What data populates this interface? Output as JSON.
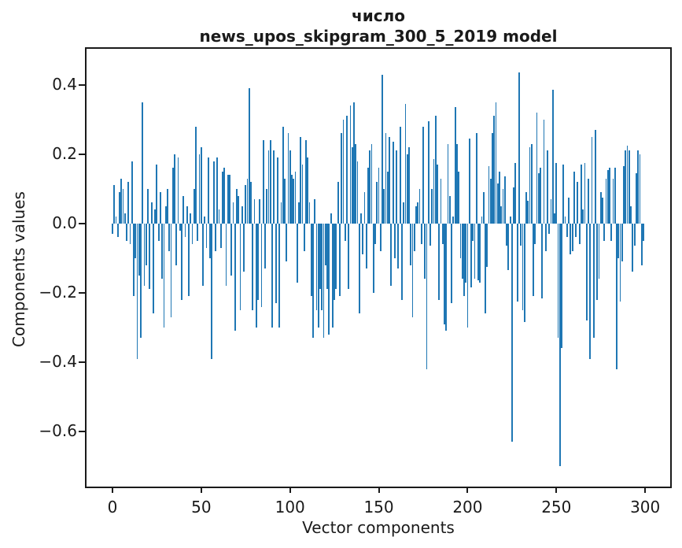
{
  "figure": {
    "title_line1": "число",
    "title_line2": "news_upos_skipgram_300_5_2019 model",
    "xlabel": "Vector components",
    "ylabel": "Components values"
  },
  "chart_data": {
    "type": "bar",
    "title": "число — news_upos_skipgram_300_5_2019 model",
    "xlabel": "Vector components",
    "ylabel": "Components values",
    "legend": "none",
    "grid": false,
    "bar_color": "#1f77b4",
    "axis_color": "#1a1a1a",
    "n_components": 300,
    "bar_width_data_units": 0.8,
    "xlim": [
      -14.6,
      314.1
    ],
    "ylim": [
      -0.759,
      0.504
    ],
    "xticks": [
      0,
      50,
      100,
      150,
      200,
      250,
      300
    ],
    "xtick_labels": [
      "0",
      "50",
      "100",
      "150",
      "200",
      "250",
      "300"
    ],
    "yticks": [
      0.4,
      0.2,
      0.0,
      -0.2,
      -0.4,
      -0.6
    ],
    "ytick_labels": [
      "0.4",
      "0.2",
      "0.0",
      "−0.2",
      "−0.4",
      "−0.6"
    ],
    "values": [
      -0.03,
      0.11,
      0.02,
      -0.04,
      0.09,
      0.13,
      0.1,
      0.03,
      -0.05,
      0.12,
      -0.06,
      0.18,
      -0.21,
      -0.1,
      -0.39,
      -0.15,
      -0.33,
      0.35,
      -0.18,
      -0.12,
      0.1,
      -0.19,
      0.06,
      -0.26,
      0.04,
      0.17,
      -0.05,
      0.09,
      -0.16,
      -0.3,
      0.05,
      0.1,
      -0.08,
      -0.27,
      0.16,
      0.2,
      -0.12,
      0.19,
      -0.02,
      -0.22,
      0.08,
      -0.04,
      0.05,
      -0.21,
      0.03,
      -0.06,
      0.1,
      0.28,
      -0.05,
      0.2,
      0.22,
      -0.18,
      0.02,
      -0.07,
      0.19,
      -0.1,
      -0.39,
      0.18,
      -0.08,
      0.19,
      0.04,
      -0.07,
      0.15,
      0.16,
      -0.18,
      0.14,
      0.14,
      -0.15,
      0.06,
      -0.31,
      0.1,
      0.08,
      -0.25,
      0.05,
      -0.14,
      0.11,
      0.13,
      0.39,
      0.12,
      -0.25,
      0.07,
      -0.3,
      -0.22,
      0.07,
      -0.24,
      0.24,
      -0.13,
      0.1,
      0.21,
      0.24,
      -0.3,
      0.21,
      -0.23,
      0.19,
      -0.3,
      0.06,
      0.28,
      0.13,
      -0.11,
      0.26,
      0.21,
      0.14,
      0.13,
      0.15,
      -0.17,
      0.06,
      0.25,
      0.17,
      -0.08,
      0.24,
      0.19,
      0.06,
      -0.21,
      -0.33,
      0.07,
      -0.25,
      -0.3,
      -0.19,
      -0.25,
      -0.33,
      -0.12,
      -0.19,
      -0.32,
      0.03,
      -0.3,
      -0.22,
      -0.19,
      0.12,
      -0.21,
      0.26,
      0.3,
      -0.05,
      0.31,
      -0.19,
      0.34,
      0.22,
      0.35,
      0.23,
      0.18,
      -0.26,
      0.03,
      -0.09,
      0.09,
      -0.13,
      0.16,
      0.21,
      0.23,
      -0.2,
      -0.06,
      0.12,
      0.16,
      -0.08,
      0.43,
      0.1,
      0.26,
      0.15,
      0.25,
      -0.18,
      0.235,
      -0.1,
      0.21,
      -0.13,
      0.28,
      -0.22,
      0.06,
      0.345,
      0.2,
      0.22,
      -0.12,
      -0.27,
      -0.08,
      0.05,
      0.06,
      0.1,
      -0.06,
      0.28,
      -0.16,
      -0.42,
      0.295,
      -0.065,
      0.1,
      0.185,
      0.31,
      0.17,
      -0.22,
      0.13,
      -0.06,
      -0.29,
      -0.31,
      0.23,
      0.08,
      -0.23,
      0.02,
      0.335,
      0.23,
      0.15,
      -0.1,
      -0.16,
      -0.21,
      -0.17,
      -0.3,
      0.245,
      -0.185,
      -0.05,
      -0.16,
      0.26,
      -0.165,
      -0.17,
      0.02,
      0.09,
      -0.26,
      -0.125,
      0.165,
      0.13,
      0.26,
      0.31,
      0.35,
      0.115,
      0.15,
      0.05,
      0.1,
      0.135,
      -0.065,
      -0.135,
      0.02,
      -0.63,
      0.105,
      0.175,
      -0.225,
      0.435,
      -0.065,
      -0.25,
      -0.285,
      0.09,
      0.065,
      0.22,
      0.23,
      -0.21,
      -0.06,
      0.32,
      0.145,
      0.16,
      -0.215,
      0.3,
      -0.08,
      0.21,
      -0.03,
      0.07,
      0.385,
      0.03,
      0.175,
      -0.33,
      -0.7,
      -0.36,
      0.17,
      0.02,
      -0.04,
      0.075,
      -0.09,
      -0.08,
      0.15,
      -0.04,
      0.12,
      -0.06,
      0.17,
      0.04,
      0.175,
      -0.28,
      0.13,
      -0.39,
      0.25,
      -0.33,
      0.27,
      -0.22,
      -0.16,
      0.09,
      0.075,
      -0.05,
      0.13,
      0.155,
      0.16,
      -0.05,
      0.13,
      0.16,
      -0.42,
      -0.1,
      -0.225,
      -0.11,
      0.165,
      0.21,
      0.225,
      0.21,
      0.05,
      -0.14,
      -0.065,
      0.145,
      0.21,
      0.2,
      -0.12,
      -0.05
    ]
  }
}
